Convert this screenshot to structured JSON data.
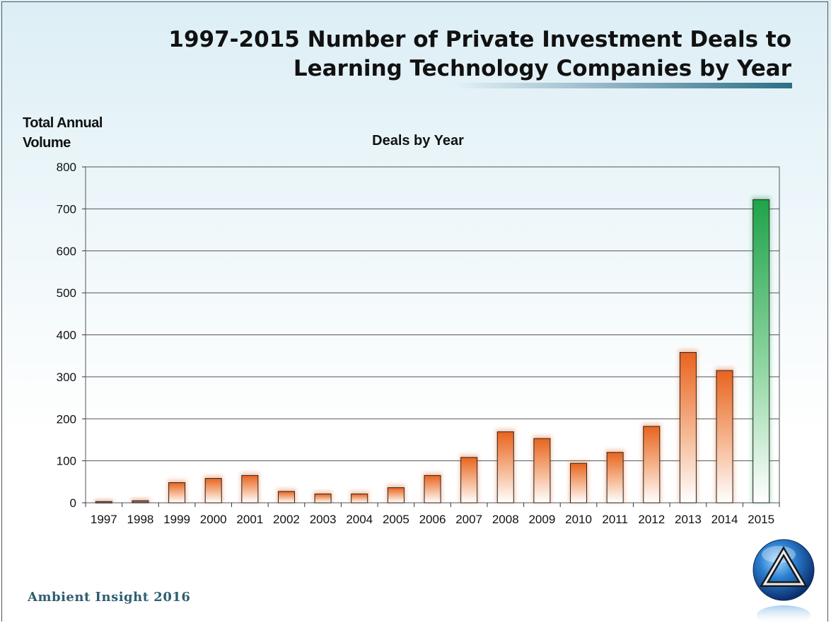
{
  "slide": {
    "title": "1997-2015 Number of Private Investment Deals to\nLearning Technology Companies by Year",
    "footer": "Ambient Insight  2016",
    "logo_icon": "triangle-orb-logo-icon"
  },
  "chart_data": {
    "type": "bar",
    "title": "Deals by Year",
    "xlabel": "",
    "ylabel": "Total Annual\nVolume",
    "categories": [
      "1997",
      "1998",
      "1999",
      "2000",
      "2001",
      "2002",
      "2003",
      "2004",
      "2005",
      "2006",
      "2007",
      "2008",
      "2009",
      "2010",
      "2011",
      "2012",
      "2013",
      "2014",
      "2015"
    ],
    "values": [
      3,
      5,
      48,
      58,
      65,
      27,
      21,
      21,
      36,
      65,
      108,
      169,
      153,
      94,
      120,
      182,
      358,
      315,
      722
    ],
    "ylim": [
      0,
      800
    ],
    "yticks": [
      0,
      100,
      200,
      300,
      400,
      500,
      600,
      700,
      800
    ],
    "grid": true,
    "colors": {
      "bar_orange": "#e8641e",
      "bar_green": "#1fa34a",
      "bar_base": "#ffffff",
      "small_bar": "#8a6a6a",
      "gridline": "#555555"
    }
  }
}
